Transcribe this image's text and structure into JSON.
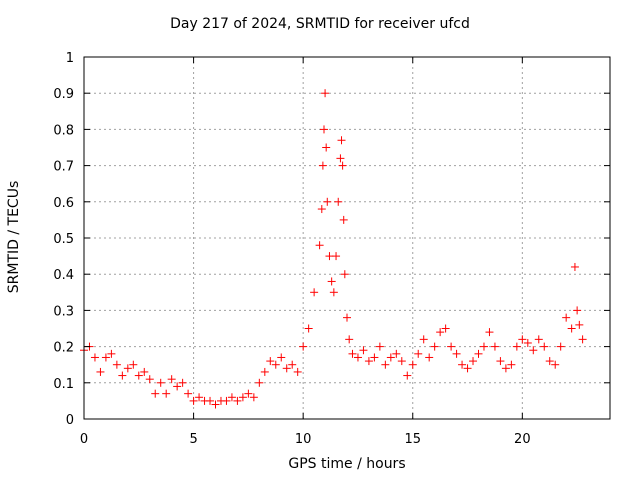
{
  "chart_data": {
    "type": "scatter",
    "title": "Day 217 of 2024, SRMTID for receiver ufcd",
    "xlabel": "GPS time / hours",
    "ylabel": "SRMTID / TECUs",
    "xlim": [
      0,
      24
    ],
    "ylim": [
      0,
      1
    ],
    "xticks": [
      0,
      5,
      10,
      15,
      20
    ],
    "xtick_labels": [
      "0",
      "5",
      "10",
      "15",
      "20"
    ],
    "yticks": [
      0,
      0.1,
      0.2,
      0.3,
      0.4,
      0.5,
      0.6,
      0.7,
      0.8,
      0.9,
      1
    ],
    "ytick_labels": [
      "0",
      "0.1",
      "0.2",
      "0.3",
      "0.4",
      "0.5",
      "0.6",
      "0.7",
      "0.8",
      "0.9",
      "1"
    ],
    "grid": true,
    "marker": "+",
    "marker_color": "#ff0000",
    "series": [
      {
        "name": "SRMTID",
        "x": [
          0.0,
          0.25,
          0.5,
          0.75,
          1.0,
          1.25,
          1.5,
          1.75,
          2.0,
          2.25,
          2.5,
          2.75,
          3.0,
          3.25,
          3.5,
          3.75,
          4.0,
          4.25,
          4.5,
          4.75,
          5.0,
          5.25,
          5.5,
          5.75,
          6.0,
          6.25,
          6.5,
          6.75,
          7.0,
          7.25,
          7.5,
          7.75,
          8.0,
          8.25,
          8.5,
          8.75,
          9.0,
          9.25,
          9.5,
          9.75,
          10.0,
          10.25,
          10.5,
          10.75,
          10.85,
          10.9,
          10.95,
          11.0,
          11.05,
          11.1,
          11.2,
          11.3,
          11.4,
          11.5,
          11.6,
          11.7,
          11.75,
          11.8,
          11.85,
          11.9,
          12.0,
          12.1,
          12.25,
          12.5,
          12.75,
          13.0,
          13.25,
          13.5,
          13.75,
          14.0,
          14.25,
          14.5,
          14.75,
          15.0,
          15.25,
          15.5,
          15.75,
          16.0,
          16.25,
          16.5,
          16.75,
          17.0,
          17.25,
          17.5,
          17.75,
          18.0,
          18.25,
          18.5,
          18.75,
          19.0,
          19.25,
          19.5,
          19.75,
          20.0,
          20.25,
          20.5,
          20.75,
          21.0,
          21.25,
          21.5,
          21.75,
          22.0,
          22.25,
          22.4,
          22.5,
          22.6,
          22.75
        ],
        "y": [
          0.19,
          0.2,
          0.17,
          0.13,
          0.17,
          0.18,
          0.15,
          0.12,
          0.14,
          0.15,
          0.12,
          0.13,
          0.11,
          0.07,
          0.1,
          0.07,
          0.11,
          0.09,
          0.1,
          0.07,
          0.05,
          0.06,
          0.05,
          0.05,
          0.04,
          0.05,
          0.05,
          0.06,
          0.05,
          0.06,
          0.07,
          0.06,
          0.1,
          0.13,
          0.16,
          0.15,
          0.17,
          0.14,
          0.15,
          0.13,
          0.2,
          0.25,
          0.35,
          0.48,
          0.58,
          0.7,
          0.8,
          0.9,
          0.75,
          0.6,
          0.45,
          0.38,
          0.35,
          0.45,
          0.6,
          0.72,
          0.77,
          0.7,
          0.55,
          0.4,
          0.28,
          0.22,
          0.18,
          0.17,
          0.19,
          0.16,
          0.17,
          0.2,
          0.15,
          0.17,
          0.18,
          0.16,
          0.12,
          0.15,
          0.18,
          0.22,
          0.17,
          0.2,
          0.24,
          0.25,
          0.2,
          0.18,
          0.15,
          0.14,
          0.16,
          0.18,
          0.2,
          0.24,
          0.2,
          0.16,
          0.14,
          0.15,
          0.2,
          0.22,
          0.21,
          0.19,
          0.22,
          0.2,
          0.16,
          0.15,
          0.2,
          0.28,
          0.25,
          0.42,
          0.3,
          0.26,
          0.22
        ]
      }
    ]
  }
}
